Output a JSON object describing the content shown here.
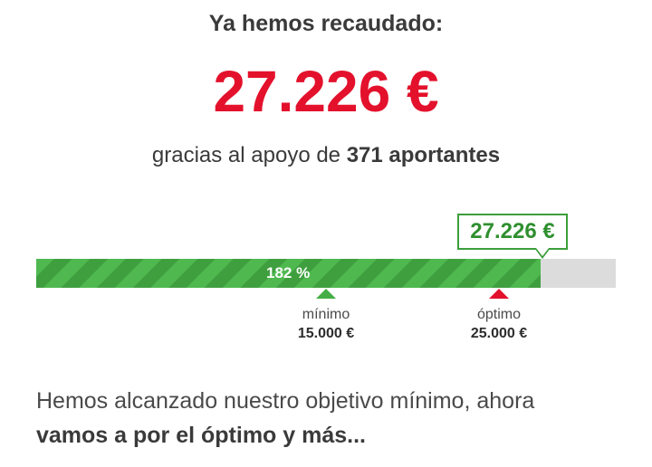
{
  "header": {
    "headline": "Ya hemos recaudado:",
    "amount": "27.226 €"
  },
  "supporters": {
    "prefix": "gracias al apoyo de",
    "count_text": "371 aportantes"
  },
  "progress": {
    "percent_label": "182 %",
    "fill_fraction": 0.87,
    "bubble_value": "27.226 €"
  },
  "markers": {
    "minimum": {
      "label": "mínimo",
      "value": "15.000 €"
    },
    "optimum": {
      "label": "óptimo",
      "value": "25.000 €"
    }
  },
  "message": {
    "line1": "Hemos alcanzado nuestro objetivo mínimo, ahora",
    "line2": "vamos a por el óptimo y más..."
  },
  "colors": {
    "amount": "#e3112c",
    "progress_green": "#45ad45",
    "minimum_marker": "#45ad45",
    "optimum_marker": "#e3112c",
    "track": "#dcdcdc"
  }
}
